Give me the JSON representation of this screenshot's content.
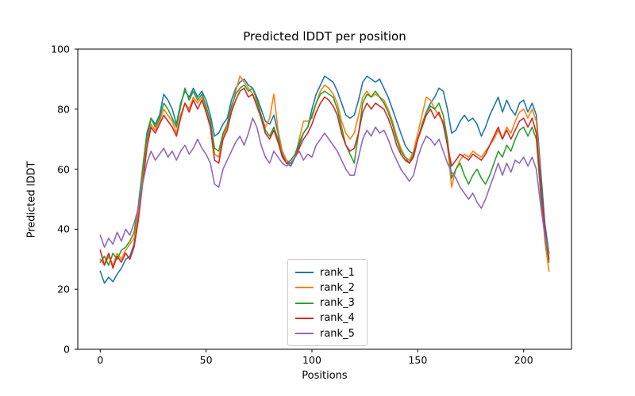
{
  "chart_data": {
    "type": "line",
    "title": "Predicted lDDT per position",
    "xlabel": "Positions",
    "ylabel": "Predicted lDDT",
    "xlim": [
      -10.6,
      222.6
    ],
    "ylim": [
      0,
      100
    ],
    "x_ticks": [
      0,
      50,
      100,
      150,
      200
    ],
    "y_ticks": [
      0,
      20,
      40,
      60,
      80,
      100
    ],
    "grid": false,
    "legend_position": "lower-center-inside",
    "axis_color": "#000000",
    "legend_border_color": "#cccccc",
    "x": [
      0,
      2,
      4,
      6,
      8,
      10,
      12,
      14,
      16,
      18,
      20,
      22,
      24,
      26,
      28,
      30,
      32,
      34,
      36,
      38,
      40,
      42,
      44,
      46,
      48,
      50,
      52,
      54,
      56,
      58,
      60,
      62,
      64,
      66,
      68,
      70,
      72,
      74,
      76,
      78,
      80,
      82,
      84,
      86,
      88,
      90,
      92,
      94,
      96,
      98,
      100,
      102,
      104,
      106,
      108,
      110,
      112,
      114,
      116,
      118,
      120,
      122,
      124,
      126,
      128,
      130,
      132,
      134,
      136,
      138,
      140,
      142,
      144,
      146,
      148,
      150,
      152,
      154,
      156,
      158,
      160,
      162,
      164,
      166,
      168,
      170,
      172,
      174,
      176,
      178,
      180,
      182,
      184,
      186,
      188,
      190,
      192,
      194,
      196,
      198,
      200,
      202,
      204,
      206,
      208,
      210,
      212
    ],
    "series": [
      {
        "name": "rank_1",
        "color": "#1f77b4",
        "values": [
          26,
          22,
          24,
          22.5,
          25,
          27,
          30,
          31,
          35,
          45,
          58,
          70,
          77,
          75,
          78,
          85,
          83,
          80,
          75,
          82,
          86,
          84,
          87,
          84,
          86,
          83,
          78,
          71,
          72,
          75,
          77,
          83,
          87,
          89,
          90,
          88,
          87,
          84,
          80,
          76,
          75,
          78,
          72,
          65,
          62,
          61,
          64,
          68,
          72,
          74,
          80,
          85,
          88,
          91,
          90,
          89,
          86,
          82,
          78,
          77,
          78,
          83,
          89,
          91,
          90,
          89,
          90,
          87,
          84,
          80,
          76,
          72,
          68,
          66,
          65,
          70,
          74,
          79,
          82,
          84,
          87,
          86,
          80,
          72,
          73,
          76,
          78,
          76,
          77,
          75,
          71,
          74,
          78,
          81,
          84,
          79,
          83,
          80,
          78,
          82,
          83,
          79,
          82,
          78,
          60,
          42,
          32
        ]
      },
      {
        "name": "rank_2",
        "color": "#ff7f0e",
        "values": [
          30,
          28,
          31,
          28,
          32,
          30,
          33,
          35,
          37,
          46,
          57,
          68,
          75,
          73,
          76,
          80,
          78,
          76,
          72,
          78,
          82,
          80,
          84,
          82,
          84,
          80,
          75,
          65,
          64,
          71,
          74,
          80,
          86,
          91,
          89,
          87,
          85,
          82,
          78,
          74,
          77,
          85,
          73,
          66,
          63,
          62,
          64,
          70,
          76,
          76,
          77,
          82,
          86,
          88,
          87,
          85,
          82,
          76,
          72,
          70,
          72,
          78,
          84,
          86,
          84,
          85,
          84,
          83,
          80,
          76,
          71,
          67,
          64,
          63,
          66,
          72,
          78,
          84,
          83,
          80,
          78,
          76,
          68,
          54,
          60,
          63,
          65,
          64,
          66,
          65,
          64,
          66,
          68,
          70,
          73,
          70,
          74,
          72,
          76,
          79,
          80,
          77,
          80,
          76,
          56,
          36,
          26
        ]
      },
      {
        "name": "rank_3",
        "color": "#2ca02c",
        "values": [
          29,
          31,
          28,
          32,
          30,
          33,
          34,
          36,
          39,
          48,
          60,
          72,
          77,
          74,
          77,
          82,
          80,
          77,
          74,
          81,
          87,
          83,
          86,
          83,
          85,
          81,
          76,
          67,
          66,
          72,
          75,
          81,
          85,
          87,
          88,
          86,
          87,
          83,
          78,
          73,
          71,
          74,
          70,
          64,
          62,
          63,
          65,
          69,
          72,
          74,
          78,
          82,
          85,
          86,
          85,
          84,
          80,
          74,
          68,
          65,
          62,
          72,
          82,
          85,
          84,
          86,
          84,
          82,
          79,
          75,
          70,
          66,
          64,
          62,
          65,
          70,
          75,
          79,
          81,
          80,
          82,
          78,
          70,
          57,
          60,
          62,
          58,
          55,
          58,
          60,
          57,
          55,
          58,
          62,
          66,
          64,
          68,
          66,
          70,
          73,
          74,
          71,
          74,
          70,
          52,
          38,
          29
        ]
      },
      {
        "name": "rank_4",
        "color": "#d62728",
        "values": [
          33,
          28,
          32,
          27,
          31,
          29,
          32,
          30,
          34,
          43,
          55,
          67,
          74,
          72,
          75,
          78,
          76,
          74,
          71,
          77,
          82,
          79,
          83,
          80,
          83,
          79,
          74,
          63,
          62,
          70,
          73,
          79,
          83,
          86,
          87,
          84,
          85,
          81,
          77,
          72,
          70,
          73,
          69,
          64,
          62,
          62,
          64,
          67,
          70,
          72,
          75,
          79,
          82,
          84,
          83,
          81,
          78,
          72,
          68,
          66,
          67,
          72,
          79,
          82,
          80,
          82,
          81,
          80,
          77,
          73,
          68,
          65,
          63,
          62,
          64,
          70,
          74,
          78,
          80,
          77,
          79,
          75,
          68,
          61,
          63,
          65,
          64,
          63,
          65,
          64,
          63,
          65,
          68,
          71,
          74,
          70,
          73,
          70,
          73,
          76,
          77,
          74,
          77,
          72,
          55,
          40,
          30
        ]
      },
      {
        "name": "rank_5",
        "color": "#9467bd",
        "values": [
          38,
          34,
          37,
          35,
          39,
          36,
          40,
          38,
          42,
          47,
          55,
          62,
          66,
          63,
          65,
          67,
          64,
          66,
          63,
          66,
          68,
          65,
          67,
          70,
          67,
          65,
          62,
          55,
          54,
          60,
          63,
          66,
          69,
          71,
          68,
          72,
          77,
          74,
          68,
          64,
          62,
          66,
          64,
          62,
          61,
          62,
          64,
          66,
          63,
          65,
          64,
          68,
          70,
          72,
          70,
          68,
          66,
          63,
          60,
          58,
          58,
          64,
          70,
          73,
          71,
          74,
          72,
          73,
          70,
          66,
          63,
          60,
          58,
          56,
          58,
          64,
          68,
          71,
          70,
          68,
          70,
          66,
          62,
          59,
          57,
          54,
          52,
          50,
          52,
          49,
          47,
          50,
          54,
          58,
          62,
          58,
          62,
          59,
          63,
          62,
          64,
          61,
          64,
          60,
          48,
          38,
          32
        ]
      }
    ]
  }
}
